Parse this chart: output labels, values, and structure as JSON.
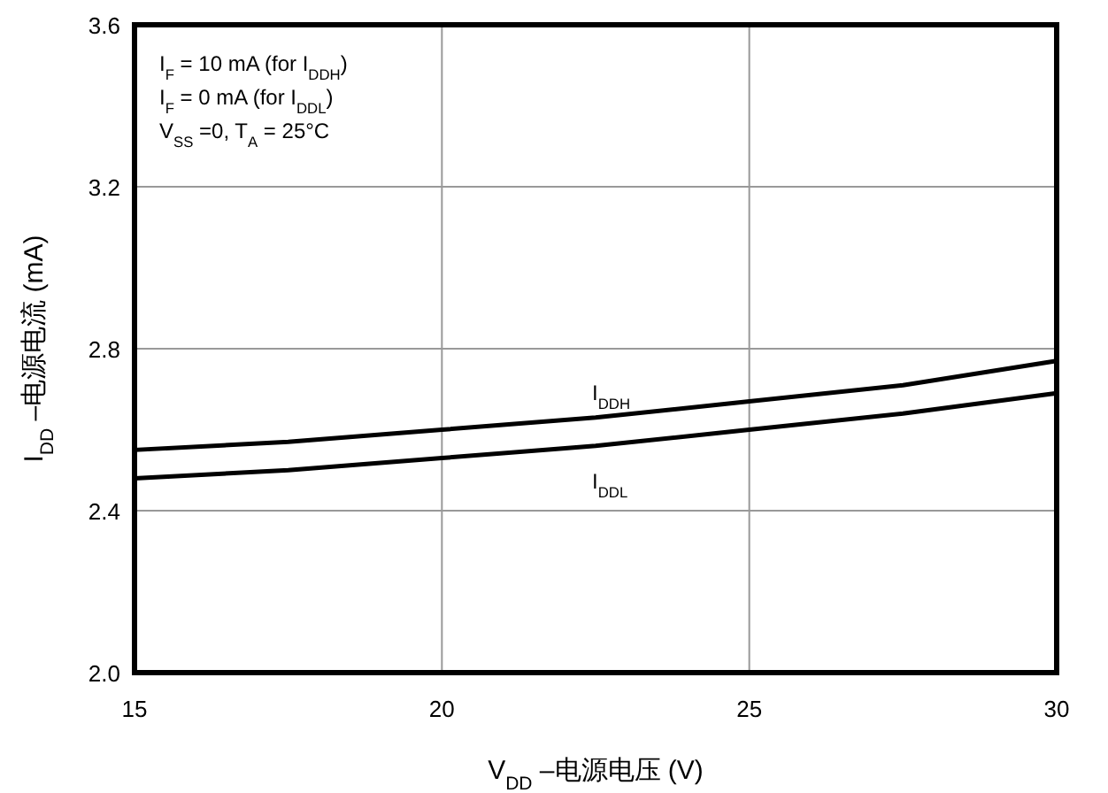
{
  "chart_data": {
    "type": "line",
    "xlabel": "V$_{DD}$ –电源电压 (V)",
    "ylabel": "I$_{DD}$ –电源电流 (mA)",
    "annotations": [
      "I$_{F}$ = 10 mA (for I$_{DDH}$)",
      "I$_{F}$ = 0 mA (for I$_{DDL}$)",
      "V$_{SS}$ =0, T$_{A}$ = 25°C"
    ],
    "x": [
      15,
      17.5,
      20,
      22.5,
      25,
      27.5,
      30
    ],
    "series": [
      {
        "name": "I$_{DDH}$",
        "color": "#000000",
        "values": [
          2.55,
          2.57,
          2.6,
          2.63,
          2.67,
          2.71,
          2.77
        ]
      },
      {
        "name": "I$_{DDL}$",
        "color": "#000000",
        "values": [
          2.48,
          2.5,
          2.53,
          2.56,
          2.6,
          2.64,
          2.69
        ]
      }
    ],
    "xlim": [
      15,
      30
    ],
    "ylim": [
      2.0,
      3.6
    ],
    "xticks": [
      15,
      20,
      25,
      30
    ],
    "yticks": [
      {
        "value": 2,
        "label": "2.0"
      },
      2.4,
      2.8,
      3.2,
      3.6
    ],
    "grid": true,
    "legend": false,
    "line_style": "solid"
  }
}
